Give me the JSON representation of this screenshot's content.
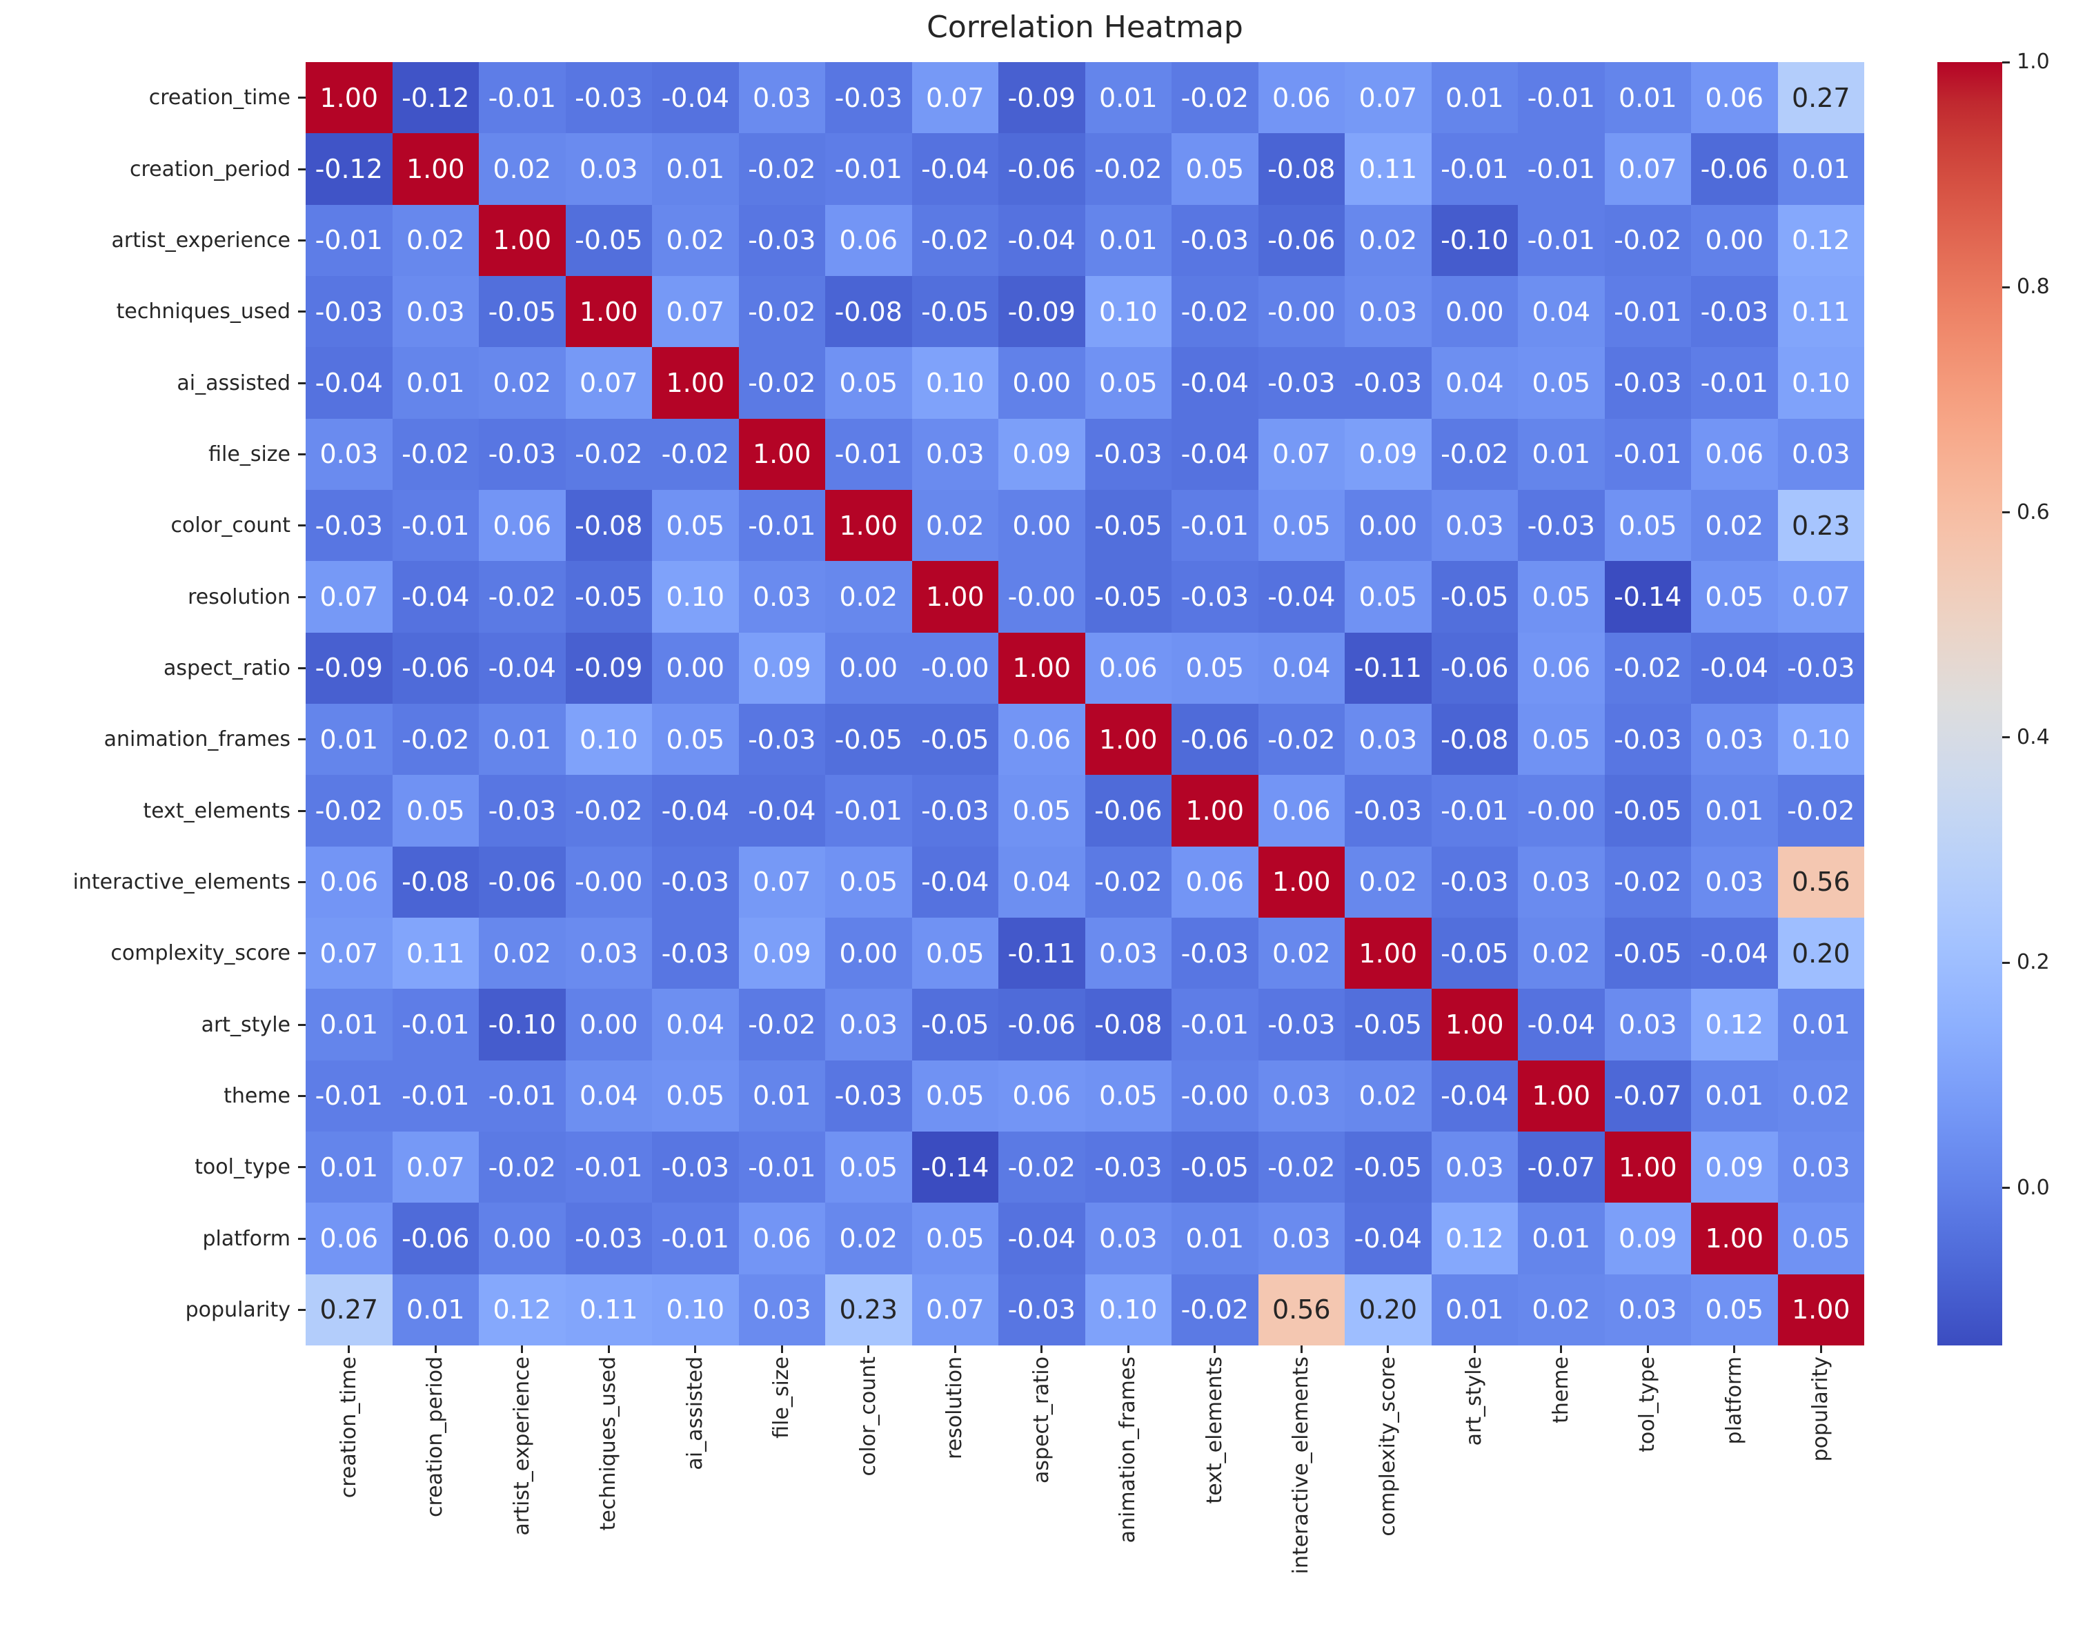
{
  "chart_data": {
    "type": "heatmap",
    "title": "Correlation Heatmap",
    "colormap": "coolwarm",
    "vmin": -0.14,
    "vmax": 1.0,
    "grid": false,
    "legend_position": "right-colorbar",
    "colorbar_tick_labels": [
      "1.0",
      "0.8",
      "0.6",
      "0.4",
      "0.2",
      "0.0"
    ],
    "categories": [
      "creation_time",
      "creation_period",
      "artist_experience",
      "techniques_used",
      "ai_assisted",
      "file_size",
      "color_count",
      "resolution",
      "aspect_ratio",
      "animation_frames",
      "text_elements",
      "interactive_elements",
      "complexity_score",
      "art_style",
      "theme",
      "tool_type",
      "platform",
      "popularity"
    ],
    "matrix": [
      [
        "1.00",
        "-0.12",
        "-0.01",
        "-0.03",
        "-0.04",
        "0.03",
        "-0.03",
        "0.07",
        "-0.09",
        "0.01",
        "-0.02",
        "0.06",
        "0.07",
        "0.01",
        "-0.01",
        "0.01",
        "0.06",
        "0.27"
      ],
      [
        "-0.12",
        "1.00",
        "0.02",
        "0.03",
        "0.01",
        "-0.02",
        "-0.01",
        "-0.04",
        "-0.06",
        "-0.02",
        "0.05",
        "-0.08",
        "0.11",
        "-0.01",
        "-0.01",
        "0.07",
        "-0.06",
        "0.01"
      ],
      [
        "-0.01",
        "0.02",
        "1.00",
        "-0.05",
        "0.02",
        "-0.03",
        "0.06",
        "-0.02",
        "-0.04",
        "0.01",
        "-0.03",
        "-0.06",
        "0.02",
        "-0.10",
        "-0.01",
        "-0.02",
        "0.00",
        "0.12"
      ],
      [
        "-0.03",
        "0.03",
        "-0.05",
        "1.00",
        "0.07",
        "-0.02",
        "-0.08",
        "-0.05",
        "-0.09",
        "0.10",
        "-0.02",
        "-0.00",
        "0.03",
        "0.00",
        "0.04",
        "-0.01",
        "-0.03",
        "0.11"
      ],
      [
        "-0.04",
        "0.01",
        "0.02",
        "0.07",
        "1.00",
        "-0.02",
        "0.05",
        "0.10",
        "0.00",
        "0.05",
        "-0.04",
        "-0.03",
        "-0.03",
        "0.04",
        "0.05",
        "-0.03",
        "-0.01",
        "0.10"
      ],
      [
        "0.03",
        "-0.02",
        "-0.03",
        "-0.02",
        "-0.02",
        "1.00",
        "-0.01",
        "0.03",
        "0.09",
        "-0.03",
        "-0.04",
        "0.07",
        "0.09",
        "-0.02",
        "0.01",
        "-0.01",
        "0.06",
        "0.03"
      ],
      [
        "-0.03",
        "-0.01",
        "0.06",
        "-0.08",
        "0.05",
        "-0.01",
        "1.00",
        "0.02",
        "0.00",
        "-0.05",
        "-0.01",
        "0.05",
        "0.00",
        "0.03",
        "-0.03",
        "0.05",
        "0.02",
        "0.23"
      ],
      [
        "0.07",
        "-0.04",
        "-0.02",
        "-0.05",
        "0.10",
        "0.03",
        "0.02",
        "1.00",
        "-0.00",
        "-0.05",
        "-0.03",
        "-0.04",
        "0.05",
        "-0.05",
        "0.05",
        "-0.14",
        "0.05",
        "0.07"
      ],
      [
        "-0.09",
        "-0.06",
        "-0.04",
        "-0.09",
        "0.00",
        "0.09",
        "0.00",
        "-0.00",
        "1.00",
        "0.06",
        "0.05",
        "0.04",
        "-0.11",
        "-0.06",
        "0.06",
        "-0.02",
        "-0.04",
        "-0.03"
      ],
      [
        "0.01",
        "-0.02",
        "0.01",
        "0.10",
        "0.05",
        "-0.03",
        "-0.05",
        "-0.05",
        "0.06",
        "1.00",
        "-0.06",
        "-0.02",
        "0.03",
        "-0.08",
        "0.05",
        "-0.03",
        "0.03",
        "0.10"
      ],
      [
        "-0.02",
        "0.05",
        "-0.03",
        "-0.02",
        "-0.04",
        "-0.04",
        "-0.01",
        "-0.03",
        "0.05",
        "-0.06",
        "1.00",
        "0.06",
        "-0.03",
        "-0.01",
        "-0.00",
        "-0.05",
        "0.01",
        "-0.02"
      ],
      [
        "0.06",
        "-0.08",
        "-0.06",
        "-0.00",
        "-0.03",
        "0.07",
        "0.05",
        "-0.04",
        "0.04",
        "-0.02",
        "0.06",
        "1.00",
        "0.02",
        "-0.03",
        "0.03",
        "-0.02",
        "0.03",
        "0.56"
      ],
      [
        "0.07",
        "0.11",
        "0.02",
        "0.03",
        "-0.03",
        "0.09",
        "0.00",
        "0.05",
        "-0.11",
        "0.03",
        "-0.03",
        "0.02",
        "1.00",
        "-0.05",
        "0.02",
        "-0.05",
        "-0.04",
        "0.20"
      ],
      [
        "0.01",
        "-0.01",
        "-0.10",
        "0.00",
        "0.04",
        "-0.02",
        "0.03",
        "-0.05",
        "-0.06",
        "-0.08",
        "-0.01",
        "-0.03",
        "-0.05",
        "1.00",
        "-0.04",
        "0.03",
        "0.12",
        "0.01"
      ],
      [
        "-0.01",
        "-0.01",
        "-0.01",
        "0.04",
        "0.05",
        "0.01",
        "-0.03",
        "0.05",
        "0.06",
        "0.05",
        "-0.00",
        "0.03",
        "0.02",
        "-0.04",
        "1.00",
        "-0.07",
        "0.01",
        "0.02"
      ],
      [
        "0.01",
        "0.07",
        "-0.02",
        "-0.01",
        "-0.03",
        "-0.01",
        "0.05",
        "-0.14",
        "-0.02",
        "-0.03",
        "-0.05",
        "-0.02",
        "-0.05",
        "0.03",
        "-0.07",
        "1.00",
        "0.09",
        "0.03"
      ],
      [
        "0.06",
        "-0.06",
        "0.00",
        "-0.03",
        "-0.01",
        "0.06",
        "0.02",
        "0.05",
        "-0.04",
        "0.03",
        "0.01",
        "0.03",
        "-0.04",
        "0.12",
        "0.01",
        "0.09",
        "1.00",
        "0.05"
      ],
      [
        "0.27",
        "0.01",
        "0.12",
        "0.11",
        "0.10",
        "0.03",
        "0.23",
        "0.07",
        "-0.03",
        "0.10",
        "-0.02",
        "0.56",
        "0.20",
        "0.01",
        "0.02",
        "0.03",
        "0.05",
        "1.00"
      ]
    ],
    "text_colors": {
      "dark": "#262626",
      "light": "#ffffff"
    },
    "accent_colors": {
      "cool_end": "#3b4cc0",
      "warm_end": "#b40426"
    }
  }
}
